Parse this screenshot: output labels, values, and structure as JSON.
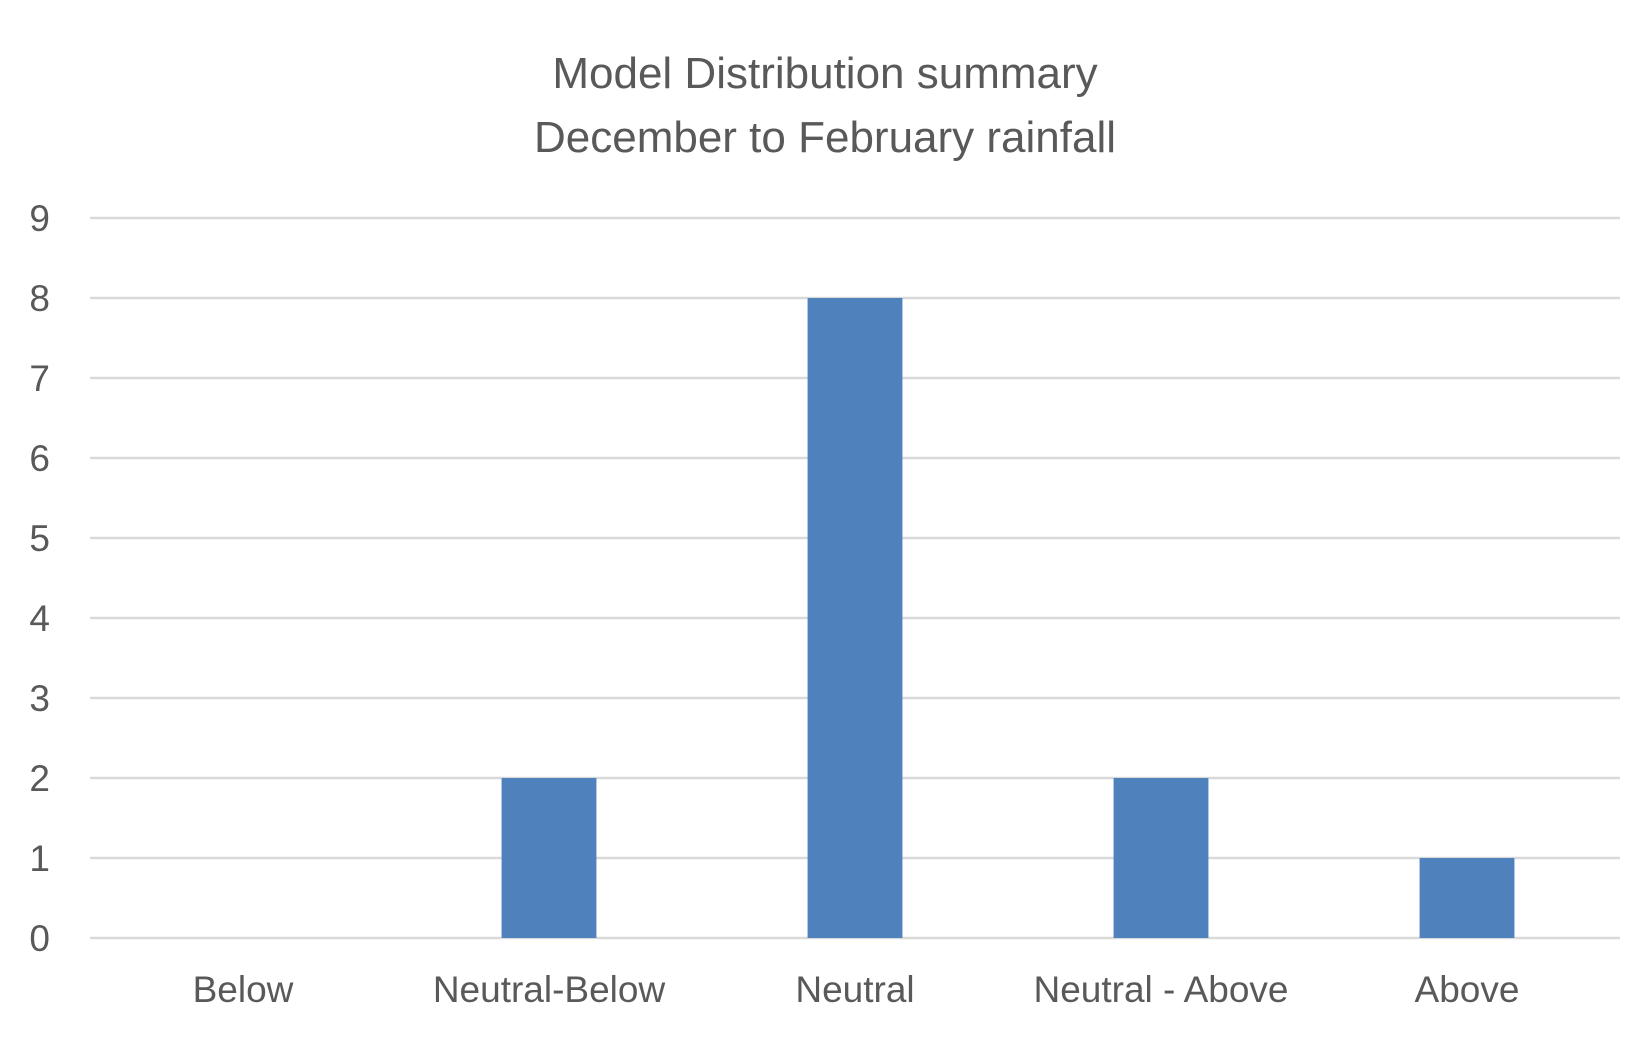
{
  "chart_data": {
    "type": "bar",
    "title": "Model Distribution summary",
    "subtitle": "December to February rainfall",
    "xlabel": "",
    "ylabel": "",
    "categories": [
      "Below",
      "Neutral-Below",
      "Neutral",
      "Neutral - Above",
      "Above"
    ],
    "series": [
      {
        "values": [
          0,
          2,
          8,
          2,
          1
        ]
      }
    ],
    "ylim": [
      0,
      9
    ],
    "yticks": [
      "0",
      "1",
      "2",
      "3",
      "4",
      "5",
      "6",
      "7",
      "8",
      "9"
    ],
    "grid": true,
    "legend": "none",
    "colors": {
      "bar": "#4F81BD",
      "grid": "#D9D9D9",
      "text": "#595959"
    }
  }
}
